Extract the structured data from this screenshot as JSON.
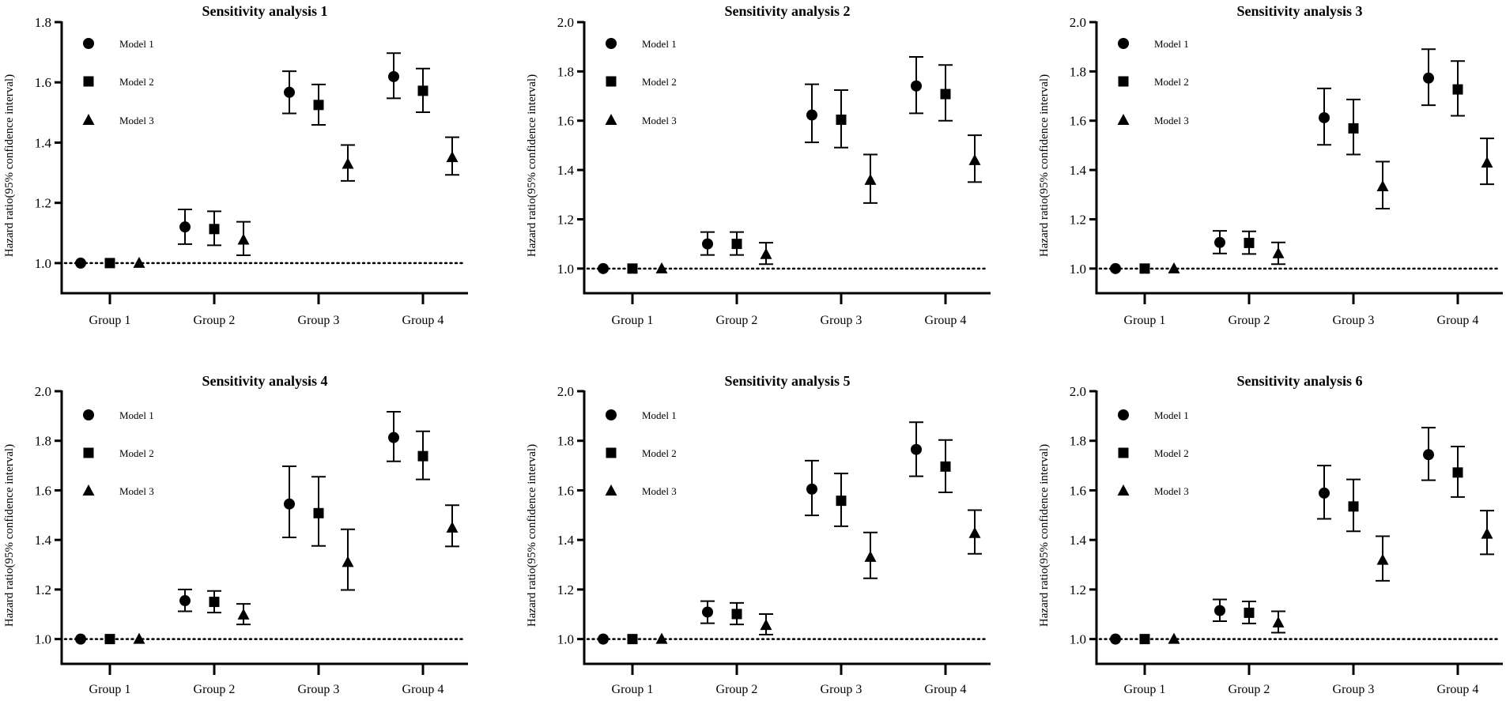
{
  "colors": {
    "ink": "#000000",
    "background": "#ffffff"
  },
  "chart_data": [
    {
      "type": "scatter",
      "title": "Sensitivity analysis 1",
      "ylabel": "Hazard ratio(95% confidence interval)",
      "xlabel": "",
      "ylim": [
        0.9,
        1.8
      ],
      "yticks": [
        "1.0",
        "1.2",
        "1.4",
        "1.6",
        "1.8"
      ],
      "reference_line": 1.0,
      "legend_position": "top-left",
      "categories": [
        "Group 1",
        "Group 2",
        "Group 3",
        "Group 4"
      ],
      "series": [
        {
          "name": "Model 1",
          "marker": "circle",
          "values": [
            1,
            1.12,
            1.567,
            1.619
          ],
          "lower": [
            1,
            1.063,
            1.497,
            1.547
          ],
          "upper": [
            1,
            1.178,
            1.637,
            1.697
          ]
        },
        {
          "name": "Model 2",
          "marker": "square",
          "values": [
            1,
            1.113,
            1.525,
            1.572
          ],
          "lower": [
            1,
            1.059,
            1.459,
            1.501
          ],
          "upper": [
            1,
            1.172,
            1.593,
            1.646
          ]
        },
        {
          "name": "Model 3",
          "marker": "triangle",
          "values": [
            1,
            1.077,
            1.329,
            1.351
          ],
          "lower": [
            1,
            1.026,
            1.273,
            1.293
          ],
          "upper": [
            1,
            1.137,
            1.392,
            1.418
          ]
        }
      ]
    },
    {
      "type": "scatter",
      "title": "Sensitivity analysis 2",
      "ylabel": "Hazard ratio(95% confidence interval)",
      "xlabel": "",
      "ylim": [
        0.9,
        2.0
      ],
      "yticks": [
        "1.0",
        "1.2",
        "1.4",
        "1.6",
        "1.8",
        "2.0"
      ],
      "reference_line": 1.0,
      "legend_position": "top-left",
      "categories": [
        "Group 1",
        "Group 2",
        "Group 3",
        "Group 4"
      ],
      "series": [
        {
          "name": "Model 1",
          "marker": "circle",
          "values": [
            1,
            1.1,
            1.623,
            1.741
          ],
          "lower": [
            1,
            1.055,
            1.512,
            1.63
          ],
          "upper": [
            1,
            1.148,
            1.748,
            1.859
          ]
        },
        {
          "name": "Model 2",
          "marker": "square",
          "values": [
            1,
            1.1,
            1.604,
            1.708
          ],
          "lower": [
            1,
            1.055,
            1.491,
            1.6
          ],
          "upper": [
            1,
            1.148,
            1.724,
            1.826
          ]
        },
        {
          "name": "Model 3",
          "marker": "triangle",
          "values": [
            1,
            1.058,
            1.359,
            1.439
          ],
          "lower": [
            1,
            1.018,
            1.266,
            1.351
          ],
          "upper": [
            1,
            1.105,
            1.463,
            1.541
          ]
        }
      ]
    },
    {
      "type": "scatter",
      "title": "Sensitivity analysis 3",
      "ylabel": "Hazard ratio(95% confidence interval)",
      "xlabel": "",
      "ylim": [
        0.9,
        2.0
      ],
      "yticks": [
        "1.0",
        "1.2",
        "1.4",
        "1.6",
        "1.8",
        "2.0"
      ],
      "reference_line": 1.0,
      "legend_position": "top-left",
      "categories": [
        "Group 1",
        "Group 2",
        "Group 3",
        "Group 4"
      ],
      "series": [
        {
          "name": "Model 1",
          "marker": "circle",
          "values": [
            1,
            1.106,
            1.612,
            1.773
          ],
          "lower": [
            1,
            1.061,
            1.502,
            1.663
          ],
          "upper": [
            1,
            1.153,
            1.731,
            1.89
          ]
        },
        {
          "name": "Model 2",
          "marker": "square",
          "values": [
            1,
            1.104,
            1.569,
            1.727
          ],
          "lower": [
            1,
            1.059,
            1.463,
            1.62
          ],
          "upper": [
            1,
            1.151,
            1.686,
            1.842
          ]
        },
        {
          "name": "Model 3",
          "marker": "triangle",
          "values": [
            1,
            1.061,
            1.333,
            1.429
          ],
          "lower": [
            1,
            1.018,
            1.243,
            1.342
          ],
          "upper": [
            1,
            1.106,
            1.434,
            1.528
          ]
        }
      ]
    },
    {
      "type": "scatter",
      "title": "Sensitivity analysis 4",
      "ylabel": "Hazard ratio(95% confidence interval)",
      "xlabel": "",
      "ylim": [
        0.9,
        2.0
      ],
      "yticks": [
        "1.0",
        "1.2",
        "1.4",
        "1.6",
        "1.8",
        "2.0"
      ],
      "reference_line": 1.0,
      "legend_position": "top-left",
      "categories": [
        "Group 1",
        "Group 2",
        "Group 3",
        "Group 4"
      ],
      "series": [
        {
          "name": "Model 1",
          "marker": "circle",
          "values": [
            1,
            1.155,
            1.545,
            1.813
          ],
          "lower": [
            1,
            1.112,
            1.41,
            1.717
          ],
          "upper": [
            1,
            1.2,
            1.697,
            1.917
          ]
        },
        {
          "name": "Model 2",
          "marker": "square",
          "values": [
            1,
            1.15,
            1.508,
            1.738
          ],
          "lower": [
            1,
            1.107,
            1.376,
            1.644
          ],
          "upper": [
            1,
            1.194,
            1.655,
            1.838
          ]
        },
        {
          "name": "Model 3",
          "marker": "triangle",
          "values": [
            1,
            1.098,
            1.31,
            1.449
          ],
          "lower": [
            1,
            1.059,
            1.198,
            1.374
          ],
          "upper": [
            1,
            1.142,
            1.443,
            1.54
          ]
        }
      ]
    },
    {
      "type": "scatter",
      "title": "Sensitivity analysis 5",
      "ylabel": "Hazard ratio(95% confidence interval)",
      "xlabel": "",
      "ylim": [
        0.9,
        2.0
      ],
      "yticks": [
        "1.0",
        "1.2",
        "1.4",
        "1.6",
        "1.8",
        "2.0"
      ],
      "reference_line": 1.0,
      "legend_position": "top-left",
      "categories": [
        "Group 1",
        "Group 2",
        "Group 3",
        "Group 4"
      ],
      "series": [
        {
          "name": "Model 1",
          "marker": "circle",
          "values": [
            1,
            1.109,
            1.605,
            1.765
          ],
          "lower": [
            1,
            1.064,
            1.499,
            1.657
          ],
          "upper": [
            1,
            1.153,
            1.72,
            1.875
          ]
        },
        {
          "name": "Model 2",
          "marker": "square",
          "values": [
            1,
            1.101,
            1.558,
            1.696
          ],
          "lower": [
            1,
            1.059,
            1.455,
            1.592
          ],
          "upper": [
            1,
            1.146,
            1.668,
            1.803
          ]
        },
        {
          "name": "Model 3",
          "marker": "triangle",
          "values": [
            1,
            1.056,
            1.331,
            1.427
          ],
          "lower": [
            1,
            1.018,
            1.245,
            1.344
          ],
          "upper": [
            1,
            1.101,
            1.43,
            1.52
          ]
        }
      ]
    },
    {
      "type": "scatter",
      "title": "Sensitivity analysis 6",
      "ylabel": "Hazard ratio(95% confidence interval)",
      "xlabel": "",
      "ylim": [
        0.9,
        2.0
      ],
      "yticks": [
        "1.0",
        "1.2",
        "1.4",
        "1.6",
        "1.8",
        "2.0"
      ],
      "reference_line": 1.0,
      "legend_position": "top-left",
      "categories": [
        "Group 1",
        "Group 2",
        "Group 3",
        "Group 4"
      ],
      "series": [
        {
          "name": "Model 1",
          "marker": "circle",
          "values": [
            1,
            1.115,
            1.589,
            1.744
          ],
          "lower": [
            1,
            1.072,
            1.485,
            1.641
          ],
          "upper": [
            1,
            1.16,
            1.7,
            1.853
          ]
        },
        {
          "name": "Model 2",
          "marker": "square",
          "values": [
            1,
            1.106,
            1.535,
            1.672
          ],
          "lower": [
            1,
            1.063,
            1.435,
            1.573
          ],
          "upper": [
            1,
            1.152,
            1.644,
            1.777
          ]
        },
        {
          "name": "Model 3",
          "marker": "triangle",
          "values": [
            1,
            1.066,
            1.319,
            1.424
          ],
          "lower": [
            1,
            1.026,
            1.235,
            1.342
          ],
          "upper": [
            1,
            1.112,
            1.415,
            1.518
          ]
        }
      ]
    }
  ]
}
